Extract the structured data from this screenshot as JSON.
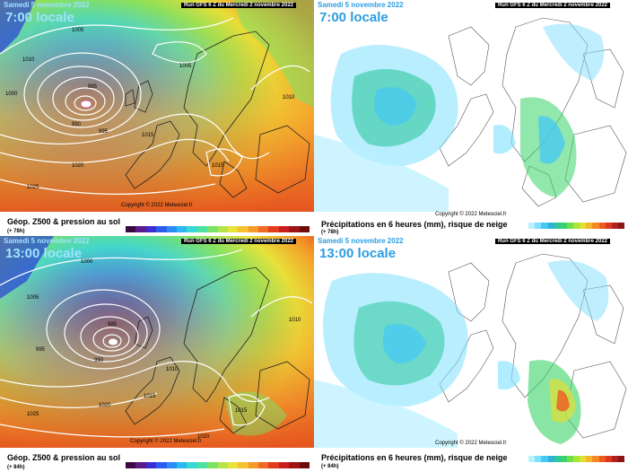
{
  "panels": [
    {
      "id": "tl",
      "title": "Samedi 5 novembre 2022",
      "time": "7:00 locale",
      "run": "Run GFS 6 Z du Mercredi 2 novembre 2022",
      "copyright": "Copyright © 2022 Meteociel.fr",
      "footer_label": "Géop. Z500 & pression au sol",
      "footer_sub": "(+ 78h)"
    },
    {
      "id": "tr",
      "title": "Samedi 5 novembre 2022",
      "time": "7:00 locale",
      "run": "Run GFS 6 Z du Mercredi 2 novembre 2022",
      "copyright": "Copyright © 2022 Meteociel.fr",
      "footer_label": "Précipitations en 6 heures (mm), risque de neige",
      "footer_sub": "(+ 78h)"
    },
    {
      "id": "bl",
      "title": "Samedi 5 novembre 2022",
      "time": "13:00 locale",
      "run": "Run GFS 6 Z du Mercredi 2 novembre 2022",
      "copyright": "Copyright © 2022 Meteociel.fr",
      "footer_label": "Géop. Z500 & pression au sol",
      "footer_sub": "(+ 84h)"
    },
    {
      "id": "br",
      "title": "Samedi 5 novembre 2022",
      "time": "13:00 locale",
      "run": "Run GFS 6 Z du Mercredi 2 novembre 2022",
      "copyright": "Copyright © 2022 Meteociel.fr",
      "footer_label": "Précipitations en 6 heures (mm), risque de neige",
      "footer_sub": "(+ 84h)"
    }
  ],
  "isobars_tl": [
    "1005",
    "1010",
    "985",
    "990",
    "995",
    "1000",
    "1015",
    "1020",
    "1025",
    "1015",
    "1010",
    "1005"
  ],
  "isobars_bl": [
    "1000",
    "1005",
    "985",
    "990",
    "995",
    "1010",
    "1015",
    "1020",
    "1025",
    "1015",
    "1020",
    "1010"
  ],
  "geo_scale_colors": [
    "#3b0a45",
    "#5b1a8a",
    "#3b2bd1",
    "#2a5cf0",
    "#2a8cf5",
    "#2ab8f0",
    "#39d6d6",
    "#4fe0a0",
    "#7be266",
    "#b5e34a",
    "#e6e33a",
    "#f5c230",
    "#f59a28",
    "#ef6b22",
    "#e33b1e",
    "#c81e1e",
    "#9e1414",
    "#6e0c0c"
  ],
  "precip_scale_colors": [
    "#ffffff",
    "#b9f1ff",
    "#7fe0ff",
    "#44c8f5",
    "#31b0d8",
    "#2ec89c",
    "#39d467",
    "#6fe04a",
    "#a8e63a",
    "#e0e033",
    "#f5b72a",
    "#f58a25",
    "#ef5a20",
    "#d93a1e",
    "#b0201e",
    "#8c1414"
  ]
}
